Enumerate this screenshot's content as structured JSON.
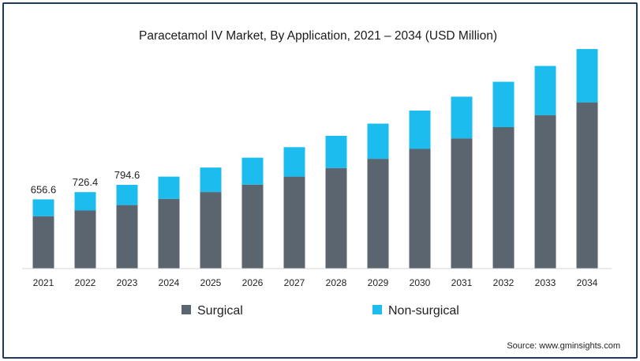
{
  "chart_data": {
    "type": "bar",
    "stacked": true,
    "title": "Paracetamol IV Market, By Application, 2021 – 2034 (USD Million)",
    "xlabel": "",
    "ylabel": "",
    "categories": [
      "2021",
      "2022",
      "2023",
      "2024",
      "2025",
      "2026",
      "2027",
      "2028",
      "2029",
      "2030",
      "2031",
      "2032",
      "2033",
      "2034"
    ],
    "series": [
      {
        "name": "Surgical",
        "color": "#5a6570",
        "values": [
          497,
          551,
          603,
          662,
          727,
          797,
          873,
          955,
          1042,
          1136,
          1236,
          1343,
          1457,
          1578
        ]
      },
      {
        "name": "Non-surgical",
        "color": "#1cbcee",
        "values": [
          160,
          175,
          192,
          211,
          232,
          256,
          280,
          306,
          334,
          364,
          396,
          431,
          467,
          506
        ]
      }
    ],
    "data_labels": [
      "656.6",
      "726.4",
      "794.6",
      "",
      "",
      "",
      "",
      "",
      "",
      "",
      "",
      "",
      "",
      ""
    ],
    "ylim": [
      0,
      2250
    ],
    "grid": false,
    "legend": "bottom-center",
    "source": "Source: www.gminsights.com"
  }
}
